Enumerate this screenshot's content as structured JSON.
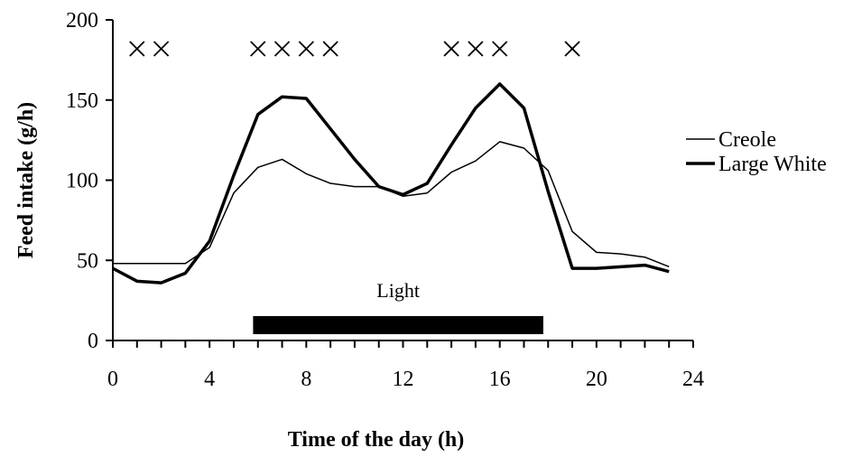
{
  "chart_data": {
    "type": "line",
    "xlabel": "Time of the day (h)",
    "ylabel": "Feed intake (g/h)",
    "xlim": [
      0,
      24
    ],
    "ylim": [
      0,
      200
    ],
    "xticks": [
      0,
      4,
      8,
      12,
      16,
      20,
      24
    ],
    "yticks": [
      0,
      50,
      100,
      150,
      200
    ],
    "grid": false,
    "legend_position": "right",
    "series": [
      {
        "name": "Creole",
        "style": "thin",
        "color": "#000000",
        "x": [
          0,
          1,
          2,
          3,
          4,
          5,
          6,
          7,
          8,
          9,
          10,
          11,
          12,
          13,
          14,
          15,
          16,
          17,
          18,
          19,
          20,
          21,
          22,
          23
        ],
        "values": [
          48,
          48,
          48,
          48,
          58,
          92,
          108,
          113,
          104,
          98,
          96,
          96,
          90,
          92,
          105,
          112,
          124,
          120,
          106,
          68,
          55,
          54,
          52,
          46
        ]
      },
      {
        "name": "Large White",
        "style": "thick",
        "color": "#000000",
        "x": [
          0,
          1,
          2,
          3,
          4,
          5,
          6,
          7,
          8,
          9,
          10,
          11,
          12,
          13,
          14,
          15,
          16,
          17,
          18,
          19,
          20,
          21,
          22,
          23
        ],
        "values": [
          45,
          37,
          36,
          42,
          62,
          103,
          141,
          152,
          151,
          132,
          113,
          96,
          91,
          98,
          122,
          145,
          160,
          145,
          93,
          45,
          45,
          46,
          47,
          43
        ]
      }
    ],
    "significance_markers": {
      "symbol": "×",
      "x": [
        1,
        2,
        6,
        7,
        8,
        9,
        14,
        15,
        16,
        19
      ]
    },
    "light_period": {
      "label": "Light",
      "start": 5.8,
      "end": 17.8
    }
  }
}
